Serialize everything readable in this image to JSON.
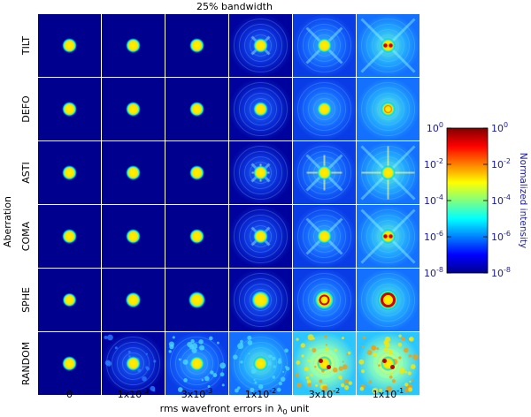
{
  "chart_data": {
    "type": "heatmap",
    "title": "25% bandwidth",
    "xlabel": "rms wavefront errors in λ0 unit",
    "xlabel_main": "rms wavefront errors in λ",
    "xlabel_sub": "0",
    "xlabel_tail": " unit",
    "ylabel": "Aberration",
    "columns": [
      {
        "label": "0",
        "value": 0
      },
      {
        "label": "1x10-3",
        "mant": "1x10",
        "exp": "-3",
        "value": 0.001
      },
      {
        "label": "3x10-3",
        "mant": "3x10",
        "exp": "-3",
        "value": 0.003
      },
      {
        "label": "1x10-2",
        "mant": "1x10",
        "exp": "-2",
        "value": 0.01
      },
      {
        "label": "3x10-2",
        "mant": "3x10",
        "exp": "-2",
        "value": 0.03
      },
      {
        "label": "1x10-1",
        "mant": "1x10",
        "exp": "-1",
        "value": 0.1
      }
    ],
    "rows": [
      "TILT",
      "DEFO",
      "ASTI",
      "COMA",
      "SPHE",
      "RANDOM"
    ],
    "colorbar": {
      "label": "Normalized intensity",
      "scale": "log",
      "range": [
        1e-08,
        1
      ],
      "ticks": [
        {
          "base": "10",
          "exp": "0",
          "value": 1
        },
        {
          "base": "10",
          "exp": "-2",
          "value": 0.01
        },
        {
          "base": "10",
          "exp": "-4",
          "value": 0.0001
        },
        {
          "base": "10",
          "exp": "-6",
          "value": 1e-06
        },
        {
          "base": "10",
          "exp": "-8",
          "value": 1e-08
        }
      ],
      "colormap": [
        "#00008f",
        "#0000ff",
        "#0080ff",
        "#00ffff",
        "#80ff80",
        "#ffff00",
        "#ff8000",
        "#ff0000",
        "#800000"
      ]
    }
  }
}
